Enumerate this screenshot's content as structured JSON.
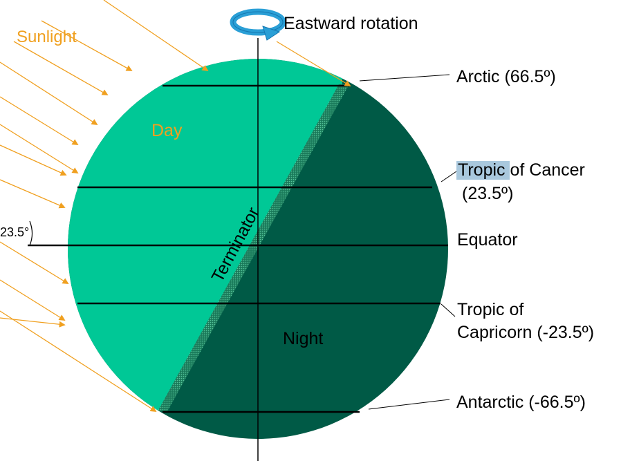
{
  "colors": {
    "day": "#00c896",
    "night": "#005a46",
    "sunlight": "#f0a020",
    "rotation_arrow": "#2a9fd6",
    "highlight": "#a9c8dd"
  },
  "labels": {
    "sunlight": "Sunlight",
    "rotation": "Eastward rotation",
    "day": "Day",
    "night": "Night",
    "terminator": "Terminator",
    "tilt_angle": "23.5°"
  },
  "latitudes": {
    "arctic": "Arctic (66.5º)",
    "tropic_cancer_highlight": "Tropic",
    "tropic_cancer_rest": " of Cancer",
    "tropic_cancer_value": "(23.5º)",
    "equator": "Equator",
    "tropic_capricorn_line1": "Tropic of",
    "tropic_capricorn_line2": "Capricorn (-23.5º)",
    "antarctic": "Antarctic (-66.5º)"
  }
}
